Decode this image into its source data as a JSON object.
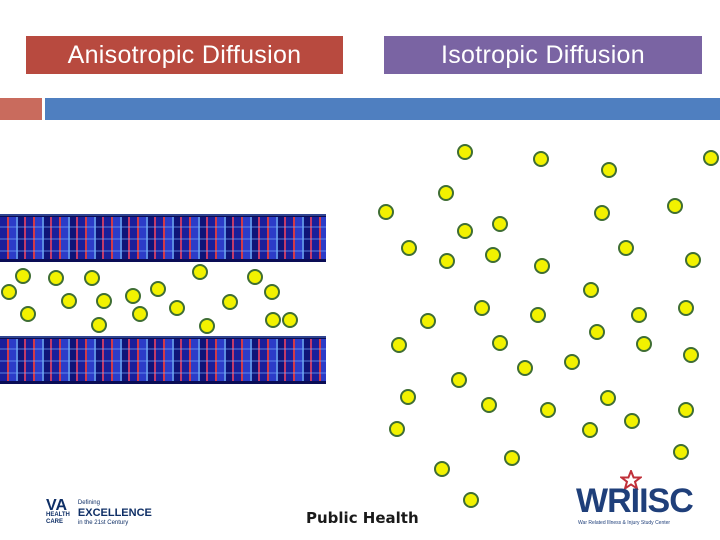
{
  "titles": {
    "left": "Anisotropic Diffusion",
    "right": "Isotropic Diffusion"
  },
  "footer": {
    "center": "Public Health"
  },
  "logos": {
    "va": "VA HEALTH CARE | Defining EXCELLENCE in the 21st Century",
    "wriisc": "WRIISC",
    "wriisc_sub": "War Related Illness & Injury Study Center"
  },
  "colors": {
    "left_title_bg": "#b84a3f",
    "right_title_bg": "#7a64a3",
    "molecule_fill": "#f2f200",
    "molecule_border": "#3f6e34",
    "bar_red": "#c96b5d",
    "bar_blue": "#4f7fc0"
  }
}
